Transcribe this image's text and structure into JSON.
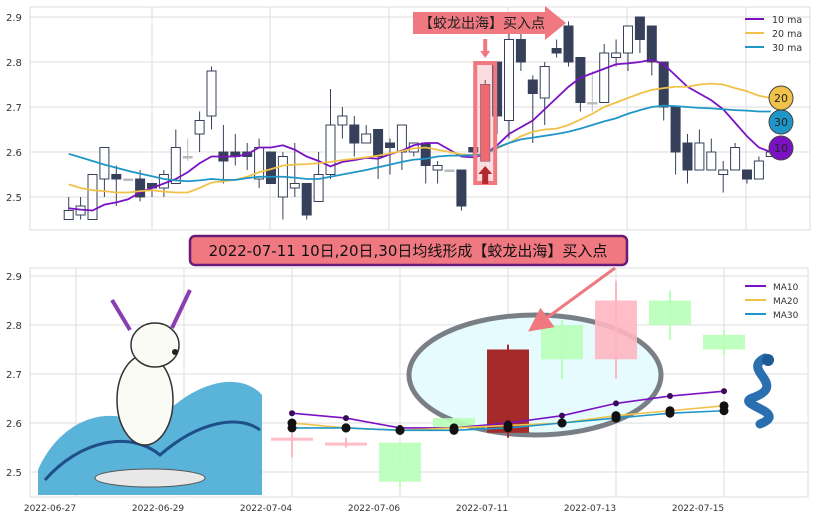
{
  "colors": {
    "ma10": "#7a12c4",
    "ma20": "#f0c24a",
    "ma30": "#1f96c8",
    "down_candle": "#36405a",
    "up_candle_edge": "#36405a",
    "bottom_up": "#ffb6c1",
    "bottom_down": "#b8ffb8",
    "signal_candle": "#a52a2a",
    "banner": "#f07880",
    "banner_border": "#6a1b7a"
  },
  "annotations": {
    "top_banner": "【蛟龙出海】买入点",
    "middle_banner": "2022-07-11 10日,20日,30日均线形成【蛟龙出海】买入点",
    "badges": [
      "20",
      "30",
      "10"
    ],
    "images": [
      "cartoon-dog-surfing-wave",
      "blue-dragon"
    ]
  },
  "chart_data": [
    {
      "type": "candlestick",
      "ylim": [
        2.43,
        2.92
      ],
      "yticks": [
        "2.5",
        "2.6",
        "2.7",
        "2.8",
        "2.9"
      ],
      "grid": true,
      "legend": {
        "placement": "top-right",
        "entries": [
          "10 ma",
          "20 ma",
          "30 ma"
        ]
      },
      "highlight_index": 35,
      "ohlc": [
        [
          2.45,
          2.5,
          2.45,
          2.47
        ],
        [
          2.46,
          2.5,
          2.45,
          2.48
        ],
        [
          2.45,
          2.55,
          2.45,
          2.55
        ],
        [
          2.54,
          2.61,
          2.5,
          2.61
        ],
        [
          2.55,
          2.57,
          2.48,
          2.54
        ],
        [
          2.54,
          2.54,
          2.54,
          2.54
        ],
        [
          2.54,
          2.56,
          2.49,
          2.5
        ],
        [
          2.53,
          2.53,
          2.5,
          2.52
        ],
        [
          2.52,
          2.56,
          2.5,
          2.55
        ],
        [
          2.53,
          2.65,
          2.53,
          2.61
        ],
        [
          2.59,
          2.63,
          2.58,
          2.59
        ],
        [
          2.64,
          2.69,
          2.6,
          2.67
        ],
        [
          2.68,
          2.79,
          2.65,
          2.78
        ],
        [
          2.6,
          2.66,
          2.53,
          2.58
        ],
        [
          2.6,
          2.64,
          2.57,
          2.59
        ],
        [
          2.6,
          2.62,
          2.56,
          2.59
        ],
        [
          2.54,
          2.63,
          2.52,
          2.61
        ],
        [
          2.6,
          2.6,
          2.53,
          2.53
        ],
        [
          2.5,
          2.6,
          2.45,
          2.59
        ],
        [
          2.52,
          2.62,
          2.5,
          2.53
        ],
        [
          2.53,
          2.53,
          2.45,
          2.46
        ],
        [
          2.49,
          2.6,
          2.49,
          2.55
        ],
        [
          2.55,
          2.74,
          2.54,
          2.66
        ],
        [
          2.66,
          2.7,
          2.63,
          2.68
        ],
        [
          2.66,
          2.68,
          2.59,
          2.62
        ],
        [
          2.62,
          2.66,
          2.62,
          2.64
        ],
        [
          2.65,
          2.65,
          2.54,
          2.59
        ],
        [
          2.62,
          2.63,
          2.55,
          2.61
        ],
        [
          2.6,
          2.66,
          2.56,
          2.66
        ],
        [
          2.6,
          2.62,
          2.59,
          2.62
        ],
        [
          2.62,
          2.62,
          2.53,
          2.57
        ],
        [
          2.56,
          2.58,
          2.53,
          2.57
        ],
        [
          2.56,
          2.56,
          2.56,
          2.56
        ],
        [
          2.56,
          2.56,
          2.47,
          2.48
        ],
        [
          2.61,
          2.61,
          2.59,
          2.6
        ],
        [
          2.58,
          2.76,
          2.58,
          2.75
        ],
        [
          2.8,
          2.8,
          2.64,
          2.68
        ],
        [
          2.67,
          2.88,
          2.63,
          2.85
        ],
        [
          2.85,
          2.88,
          2.78,
          2.8
        ],
        [
          2.76,
          2.77,
          2.62,
          2.73
        ],
        [
          2.72,
          2.8,
          2.66,
          2.79
        ],
        [
          2.83,
          2.85,
          2.81,
          2.82
        ],
        [
          2.88,
          2.89,
          2.79,
          2.8
        ],
        [
          2.81,
          2.81,
          2.69,
          2.71
        ],
        [
          2.71,
          2.78,
          2.69,
          2.71
        ],
        [
          2.71,
          2.84,
          2.71,
          2.82
        ],
        [
          2.81,
          2.85,
          2.79,
          2.82
        ],
        [
          2.82,
          2.88,
          2.78,
          2.88
        ],
        [
          2.9,
          2.9,
          2.82,
          2.85
        ],
        [
          2.88,
          2.88,
          2.77,
          2.8
        ],
        [
          2.8,
          2.8,
          2.67,
          2.7
        ],
        [
          2.7,
          2.7,
          2.55,
          2.6
        ],
        [
          2.62,
          2.64,
          2.53,
          2.56
        ],
        [
          2.56,
          2.65,
          2.56,
          2.62
        ],
        [
          2.56,
          2.63,
          2.56,
          2.6
        ],
        [
          2.55,
          2.58,
          2.51,
          2.56
        ],
        [
          2.56,
          2.62,
          2.56,
          2.61
        ],
        [
          2.56,
          2.56,
          2.53,
          2.54
        ],
        [
          2.54,
          2.59,
          2.54,
          2.58
        ],
        [
          2.59,
          2.62,
          2.59,
          2.6
        ]
      ],
      "series": [
        {
          "name": "10 ma",
          "values": [
            2.475,
            2.472,
            2.47,
            2.483,
            2.488,
            2.495,
            2.51,
            2.52,
            2.53,
            2.54,
            2.555,
            2.575,
            2.59,
            2.59,
            2.59,
            2.595,
            2.61,
            2.61,
            2.615,
            2.605,
            2.59,
            2.58,
            2.568,
            2.578,
            2.582,
            2.587,
            2.585,
            2.595,
            2.603,
            2.615,
            2.62,
            2.62,
            2.605,
            2.59,
            2.588,
            2.595,
            2.615,
            2.64,
            2.655,
            2.67,
            2.695,
            2.72,
            2.745,
            2.765,
            2.775,
            2.785,
            2.795,
            2.797,
            2.8,
            2.805,
            2.795,
            2.77,
            2.745,
            2.73,
            2.715,
            2.695,
            2.665,
            2.635,
            2.61,
            2.6
          ]
        },
        {
          "name": "20 ma",
          "values": [
            2.528,
            2.52,
            2.515,
            2.513,
            2.51,
            2.51,
            2.513,
            2.515,
            2.512,
            2.51,
            2.51,
            2.52,
            2.532,
            2.535,
            2.538,
            2.545,
            2.555,
            2.562,
            2.57,
            2.572,
            2.573,
            2.575,
            2.578,
            2.582,
            2.585,
            2.588,
            2.592,
            2.597,
            2.602,
            2.608,
            2.61,
            2.605,
            2.6,
            2.595,
            2.593,
            2.595,
            2.608,
            2.62,
            2.635,
            2.645,
            2.65,
            2.652,
            2.66,
            2.672,
            2.685,
            2.7,
            2.71,
            2.72,
            2.73,
            2.738,
            2.742,
            2.745,
            2.745,
            2.75,
            2.752,
            2.75,
            2.742,
            2.735,
            2.725,
            2.72
          ]
        },
        {
          "name": "30 ma",
          "values": [
            2.596,
            2.588,
            2.58,
            2.572,
            2.565,
            2.558,
            2.552,
            2.546,
            2.54,
            2.537,
            2.535,
            2.537,
            2.54,
            2.538,
            2.538,
            2.542,
            2.545,
            2.545,
            2.545,
            2.543,
            2.54,
            2.54,
            2.545,
            2.55,
            2.555,
            2.56,
            2.566,
            2.572,
            2.578,
            2.583,
            2.585,
            2.59,
            2.592,
            2.592,
            2.593,
            2.595,
            2.61,
            2.62,
            2.628,
            2.632,
            2.636,
            2.64,
            2.645,
            2.652,
            2.66,
            2.668,
            2.675,
            2.685,
            2.693,
            2.7,
            2.703,
            2.702,
            2.7,
            2.698,
            2.697,
            2.695,
            2.693,
            2.692,
            2.69,
            2.69
          ]
        }
      ]
    },
    {
      "type": "candlestick",
      "ylim": [
        2.45,
        2.9
      ],
      "yticks": [
        "2.5",
        "2.6",
        "2.7",
        "2.8",
        "2.9"
      ],
      "xticks": [
        "2022-06-27",
        "2022-06-29",
        "2022-07-04",
        "2022-07-06",
        "2022-07-11",
        "2022-07-13",
        "2022-07-15"
      ],
      "grid": true,
      "legend": {
        "placement": "top-right",
        "entries": [
          "MA10",
          "MA20",
          "MA30"
        ]
      },
      "highlight_date": "2022-07-11",
      "dates": [
        "2022-07-04",
        "2022-07-05",
        "2022-07-06",
        "2022-07-07",
        "2022-07-11",
        "2022-07-12",
        "2022-07-13",
        "2022-07-14",
        "2022-07-15"
      ],
      "ohlc": [
        [
          2.565,
          2.58,
          2.53,
          2.57
        ],
        [
          2.56,
          2.57,
          2.55,
          2.56
        ],
        [
          2.56,
          2.56,
          2.47,
          2.48
        ],
        [
          2.61,
          2.61,
          2.59,
          2.59
        ],
        [
          2.58,
          2.76,
          2.57,
          2.75
        ],
        [
          2.8,
          2.81,
          2.69,
          2.73
        ],
        [
          2.73,
          2.89,
          2.69,
          2.85
        ],
        [
          2.85,
          2.87,
          2.77,
          2.8
        ],
        [
          2.78,
          2.79,
          2.74,
          2.75
        ]
      ],
      "candle_styles": [
        "up",
        "up",
        "down",
        "down",
        "signal",
        "down",
        "up",
        "down",
        "down"
      ],
      "series": [
        {
          "name": "MA10",
          "values": [
            2.62,
            2.61,
            2.59,
            2.59,
            2.6,
            2.615,
            2.64,
            2.655,
            2.665
          ]
        },
        {
          "name": "MA20",
          "values": [
            2.6,
            2.59,
            2.585,
            2.59,
            2.595,
            2.6,
            2.615,
            2.625,
            2.635
          ]
        },
        {
          "name": "MA30",
          "values": [
            2.59,
            2.59,
            2.585,
            2.585,
            2.59,
            2.6,
            2.61,
            2.62,
            2.625
          ]
        }
      ]
    }
  ]
}
